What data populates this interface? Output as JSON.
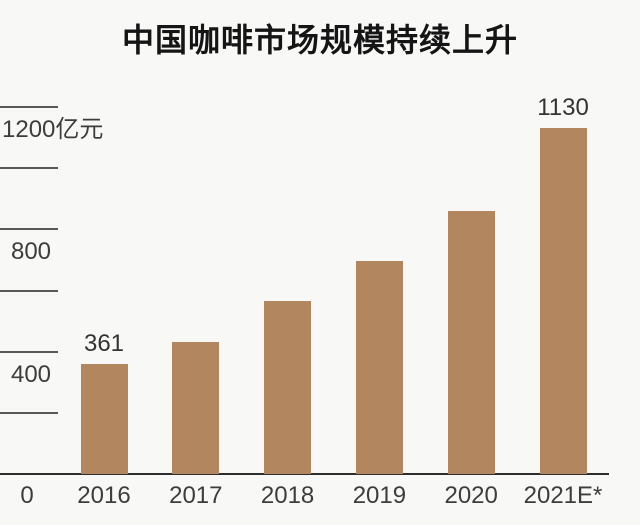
{
  "chart_data": {
    "type": "bar",
    "title": "中国咖啡市场规模持续上升",
    "unit_label": "亿元",
    "categories": [
      "2016",
      "2017",
      "2018",
      "2019",
      "2020",
      "2021E*"
    ],
    "values": [
      361,
      430,
      565,
      697,
      860,
      1130
    ],
    "bar_value_labels": [
      "361",
      "",
      "",
      "",
      "",
      "1130"
    ],
    "y_axis": {
      "ticks": [
        {
          "value": 1200,
          "label": "1200亿元"
        },
        {
          "value": 1000,
          "label": ""
        },
        {
          "value": 800,
          "label": "800"
        },
        {
          "value": 600,
          "label": ""
        },
        {
          "value": 400,
          "label": "400"
        },
        {
          "value": 200,
          "label": ""
        }
      ],
      "origin_label": "0"
    },
    "ylim": [
      0,
      1200
    ],
    "legend": "none",
    "grid": "left-tick-dashes-only",
    "colors": {
      "bar": "#b28760",
      "background": "#f8f8f6",
      "title_text": "#151515",
      "axis_text": "#3d3d3d",
      "value_text": "#333333",
      "axis_line": "#2d2d2d",
      "tick_line": "#58585a"
    }
  }
}
